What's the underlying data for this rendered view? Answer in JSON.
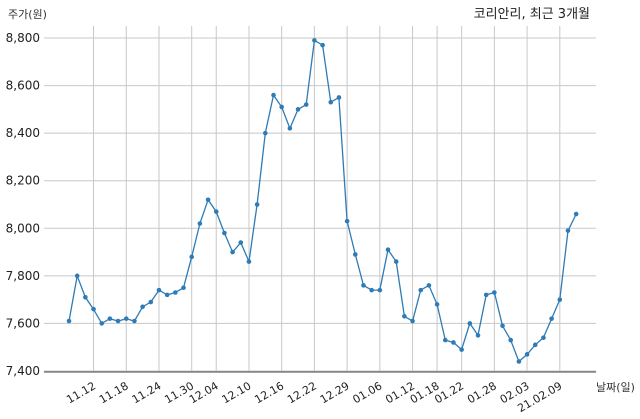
{
  "chart_data": {
    "type": "line",
    "title": "코리안리, 최근 3개월",
    "ylabel": "주가(원)",
    "xlabel": "날짜(일)",
    "ylim": [
      7400,
      8800
    ],
    "yticks": [
      7400,
      7600,
      7800,
      8000,
      8200,
      8400,
      8600,
      8800
    ],
    "ytick_labels": [
      "7,400",
      "7,600",
      "7,800",
      "8,000",
      "8,200",
      "8,400",
      "8,600",
      "8,800"
    ],
    "xtick_labels": [
      "11.12",
      "11.18",
      "11.24",
      "11.30",
      "12.04",
      "12.10",
      "12.16",
      "12.22",
      "12.29",
      "01.06",
      "01.12",
      "01.18",
      "01.22",
      "01.28",
      "02.03",
      "21.02.09"
    ],
    "xtick_indices": [
      3,
      7,
      11,
      15,
      18,
      22,
      26,
      30,
      34,
      38,
      42,
      45,
      48,
      52,
      56,
      60
    ],
    "grid": true,
    "series": [
      {
        "name": "",
        "color": "#2e7bb6",
        "values": [
          7610,
          7800,
          7710,
          7660,
          7600,
          7620,
          7610,
          7620,
          7610,
          7670,
          7690,
          7740,
          7720,
          7730,
          7750,
          7880,
          8020,
          8120,
          8070,
          7980,
          7900,
          7940,
          7860,
          8100,
          8400,
          8560,
          8510,
          8420,
          8500,
          8520,
          8790,
          8770,
          8530,
          8550,
          8030,
          7890,
          7760,
          7740,
          7740,
          7910,
          7860,
          7630,
          7610,
          7740,
          7760,
          7680,
          7530,
          7520,
          7490,
          7600,
          7550,
          7720,
          7730,
          7590,
          7530,
          7440,
          7470,
          7510,
          7540,
          7620,
          7700,
          7990,
          8060
        ]
      }
    ]
  }
}
